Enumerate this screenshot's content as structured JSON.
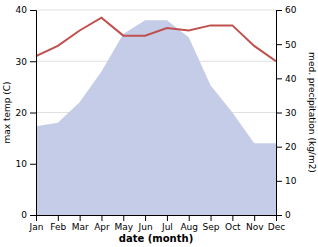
{
  "chart_data": {
    "type": "line",
    "categories": [
      "Jan",
      "Feb",
      "Mar",
      "Apr",
      "May",
      "Jun",
      "Jul",
      "Aug",
      "Sep",
      "Oct",
      "Nov",
      "Dec"
    ],
    "x_label": "date (month)",
    "y_label": "max temp (C)",
    "y2_label": "med. precipitation (kg/m2)",
    "series": [
      {
        "type": "area",
        "axis": "y2",
        "color": "#c5cce8",
        "values": [
          26,
          27,
          33,
          42,
          53,
          57,
          57,
          52,
          38,
          30,
          21,
          21
        ]
      },
      {
        "type": "line",
        "color": "#c0504d",
        "values": [
          31,
          33,
          36,
          38.5,
          35,
          35,
          36.5,
          36,
          37,
          37,
          33,
          30
        ]
      }
    ],
    "ylim": [
      0,
      40
    ],
    "yticks": [
      0,
      10,
      20,
      30,
      40
    ],
    "y2lim": [
      0,
      60
    ],
    "y2ticks": [
      0,
      10,
      20,
      30,
      40,
      50,
      60
    ],
    "grid": true
  }
}
